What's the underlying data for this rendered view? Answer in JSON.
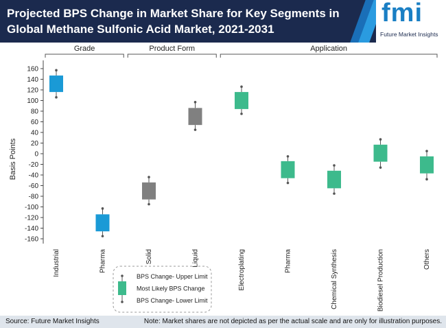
{
  "chart_data": {
    "type": "range-box",
    "title": "Projected BPS Change in Market Share for Key Segments in Global Methane Sulfonic Acid Market, 2021-2031",
    "y_label": "Basis Points",
    "groups": [
      {
        "name": "Grade",
        "color": "#1a9ad6",
        "categories": [
          "Industrial",
          "Pharma"
        ]
      },
      {
        "name": "Product Form",
        "color": "#808080",
        "categories": [
          "Solid",
          "Liquid"
        ]
      },
      {
        "name": "Application",
        "color": "#3dba8c",
        "categories": [
          "Electroplating",
          "Pharma",
          "Chemical Synthesis",
          "Biodiesel Production",
          "Others"
        ]
      }
    ],
    "series": [
      {
        "name": "BPS Change- Upper Limit",
        "values": [
          157,
          -103,
          -44,
          97,
          126,
          -5,
          -22,
          27,
          5
        ]
      },
      {
        "name": "Most Likely BPS Change",
        "values": [
          [
            116,
            147
          ],
          [
            -146,
            -114
          ],
          [
            -86,
            -54
          ],
          [
            54,
            86
          ],
          [
            84,
            116
          ],
          [
            -46,
            -14
          ],
          [
            -65,
            -32
          ],
          [
            -15,
            17
          ],
          [
            -37,
            -5
          ]
        ]
      },
      {
        "name": "BPS Change- Lower Limit",
        "values": [
          106,
          -155,
          -95,
          45,
          75,
          -55,
          -75,
          -26,
          -48
        ]
      }
    ],
    "ylim": [
      -160,
      160
    ],
    "yticks": [
      -160,
      -140,
      -120,
      -100,
      -80,
      -60,
      -40,
      -20,
      0,
      20,
      40,
      60,
      80,
      100,
      120,
      140,
      160
    ]
  },
  "header": {
    "logo_text": "fmi",
    "logo_caption": "Future Market Insights"
  },
  "footer": {
    "source": "Source: Future Market Insights",
    "note": "Note: Market shares are not depicted as per the actual scale and are only for illustration purposes."
  }
}
